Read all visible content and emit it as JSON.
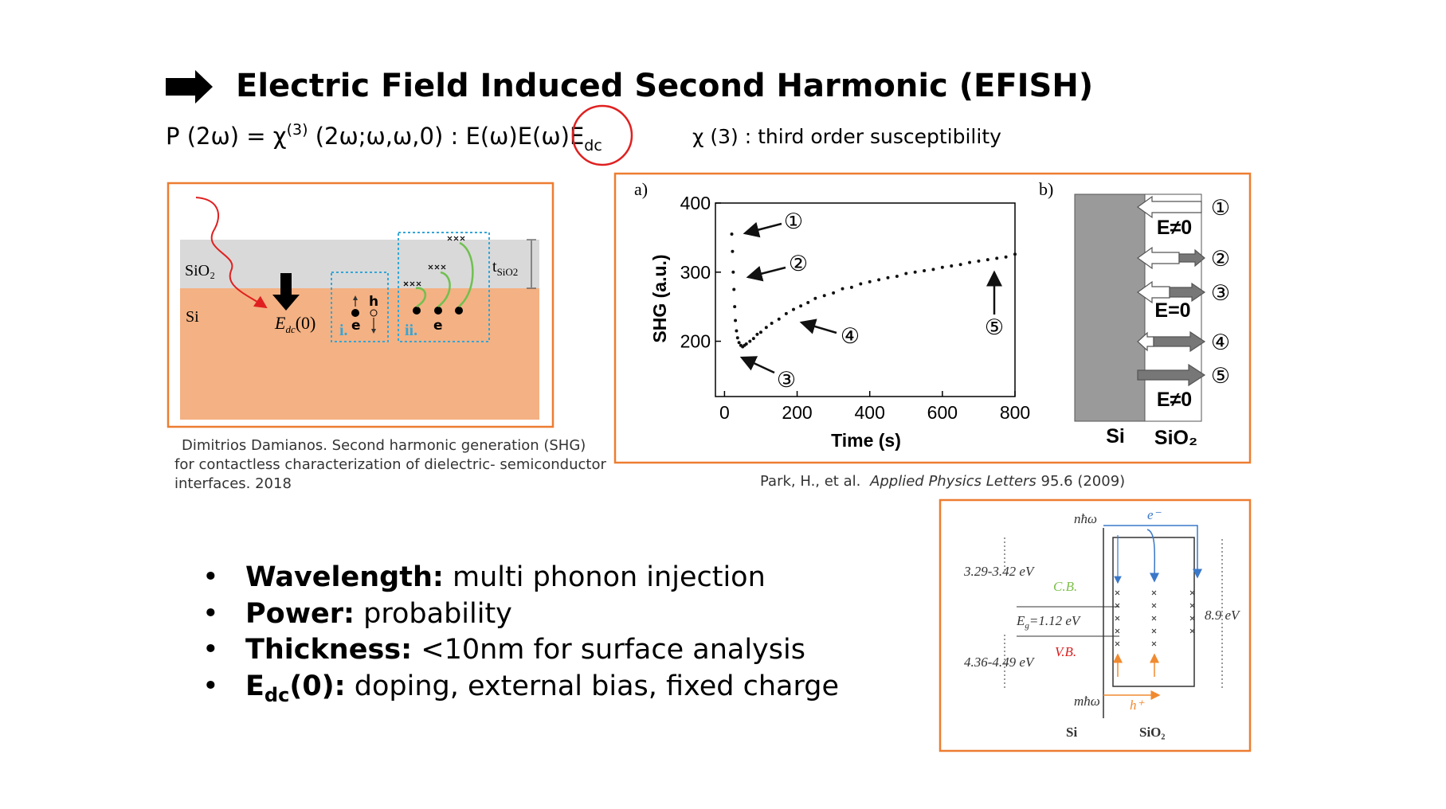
{
  "header": {
    "title": "Electric Field Induced Second Harmonic (EFISH)"
  },
  "equation": {
    "parts": [
      "P (2ω) = χ",
      "(3)",
      " (2ω;ω,ω,0) : E(ω)E(ω)E",
      "dc"
    ],
    "note": "χ (3) : third order susceptibility"
  },
  "figure_left": {
    "labels": {
      "oxide": "SiO₂",
      "silicon": "Si",
      "field": "E",
      "field_sub": "dc",
      "field_arg": "(0)",
      "region_i": "i.",
      "region_ii": "ii.",
      "electron_i": "e",
      "hole": "h",
      "electron_ii": "e",
      "thickness": "t",
      "thickness_sub": "SiO2"
    },
    "caption": [
      "Dimitrios Damianos. Second harmonic generation (SHG)",
      "for contactless characterization of dielectric- semiconductor",
      "interfaces. 2018"
    ]
  },
  "figure_middle": {
    "panel_a": "a)",
    "panel_b": "b)",
    "chart_data": {
      "type": "scatter",
      "x_label": "Time (s)",
      "y_label": "SHG (a.u.)",
      "color": "#111111",
      "xlim": [
        -25,
        800
      ],
      "ylim": [
        120,
        400
      ],
      "xticks": [
        0,
        200,
        400,
        600,
        800
      ],
      "yticks": [
        200,
        300,
        400
      ],
      "x": [
        20,
        22,
        24,
        26,
        28,
        30,
        33,
        36,
        40,
        45,
        50,
        55,
        60,
        70,
        80,
        90,
        100,
        115,
        130,
        150,
        170,
        190,
        210,
        230,
        250,
        275,
        300,
        325,
        350,
        375,
        400,
        425,
        450,
        475,
        500,
        525,
        550,
        575,
        600,
        625,
        650,
        675,
        700,
        725,
        750,
        775,
        800
      ],
      "y": [
        355,
        330,
        300,
        275,
        250,
        230,
        215,
        205,
        198,
        194,
        192,
        194,
        196,
        200,
        204,
        210,
        213,
        220,
        226,
        232,
        240,
        246,
        251,
        256,
        262,
        266,
        270,
        276,
        278,
        283,
        286,
        289,
        292,
        294,
        298,
        300,
        302,
        304,
        307,
        309,
        311,
        314,
        316,
        318,
        320,
        322,
        326
      ],
      "annotations": [
        "①",
        "②",
        "③",
        "④",
        "⑤"
      ]
    },
    "panel_b_labels": {
      "numbers": [
        "①",
        "②",
        "③",
        "④",
        "⑤"
      ],
      "field_top": "E≠0",
      "field_mid": "E=0",
      "field_bottom": "E≠0",
      "silicon": "Si",
      "oxide": "SiO₂"
    },
    "caption": {
      "authors": "Park, H., et al. ",
      "journal": "Applied Physics Letters",
      "volume": " 95.6 (2009)"
    }
  },
  "figure_bottom": {
    "labels": {
      "photon_n": "nħω",
      "electron": "e⁻",
      "cb_offset": "3.29-3.42 eV",
      "cb": "C.B.",
      "gap": "E",
      "gap_sub": "g",
      "gap_value": "=1.12 eV",
      "vb": "V.B.",
      "vb_offset": "4.36-4.49 eV",
      "photon_m": "mħω",
      "hole": "h⁺",
      "oxide_gap": "8.9 eV",
      "silicon": "Si",
      "oxide": "SiO₂"
    }
  },
  "bullets": [
    {
      "term": "Wavelength:",
      "text": " multi phonon injection"
    },
    {
      "term": "Power:",
      "text": " probability"
    },
    {
      "term": "Thickness:",
      "text": " <10nm for surface analysis"
    },
    {
      "term": "E",
      "term_sub": "dc",
      "term_rest": "(0):",
      "text": " doping, external bias, fixed charge"
    }
  ],
  "bullet_symbol": "•"
}
